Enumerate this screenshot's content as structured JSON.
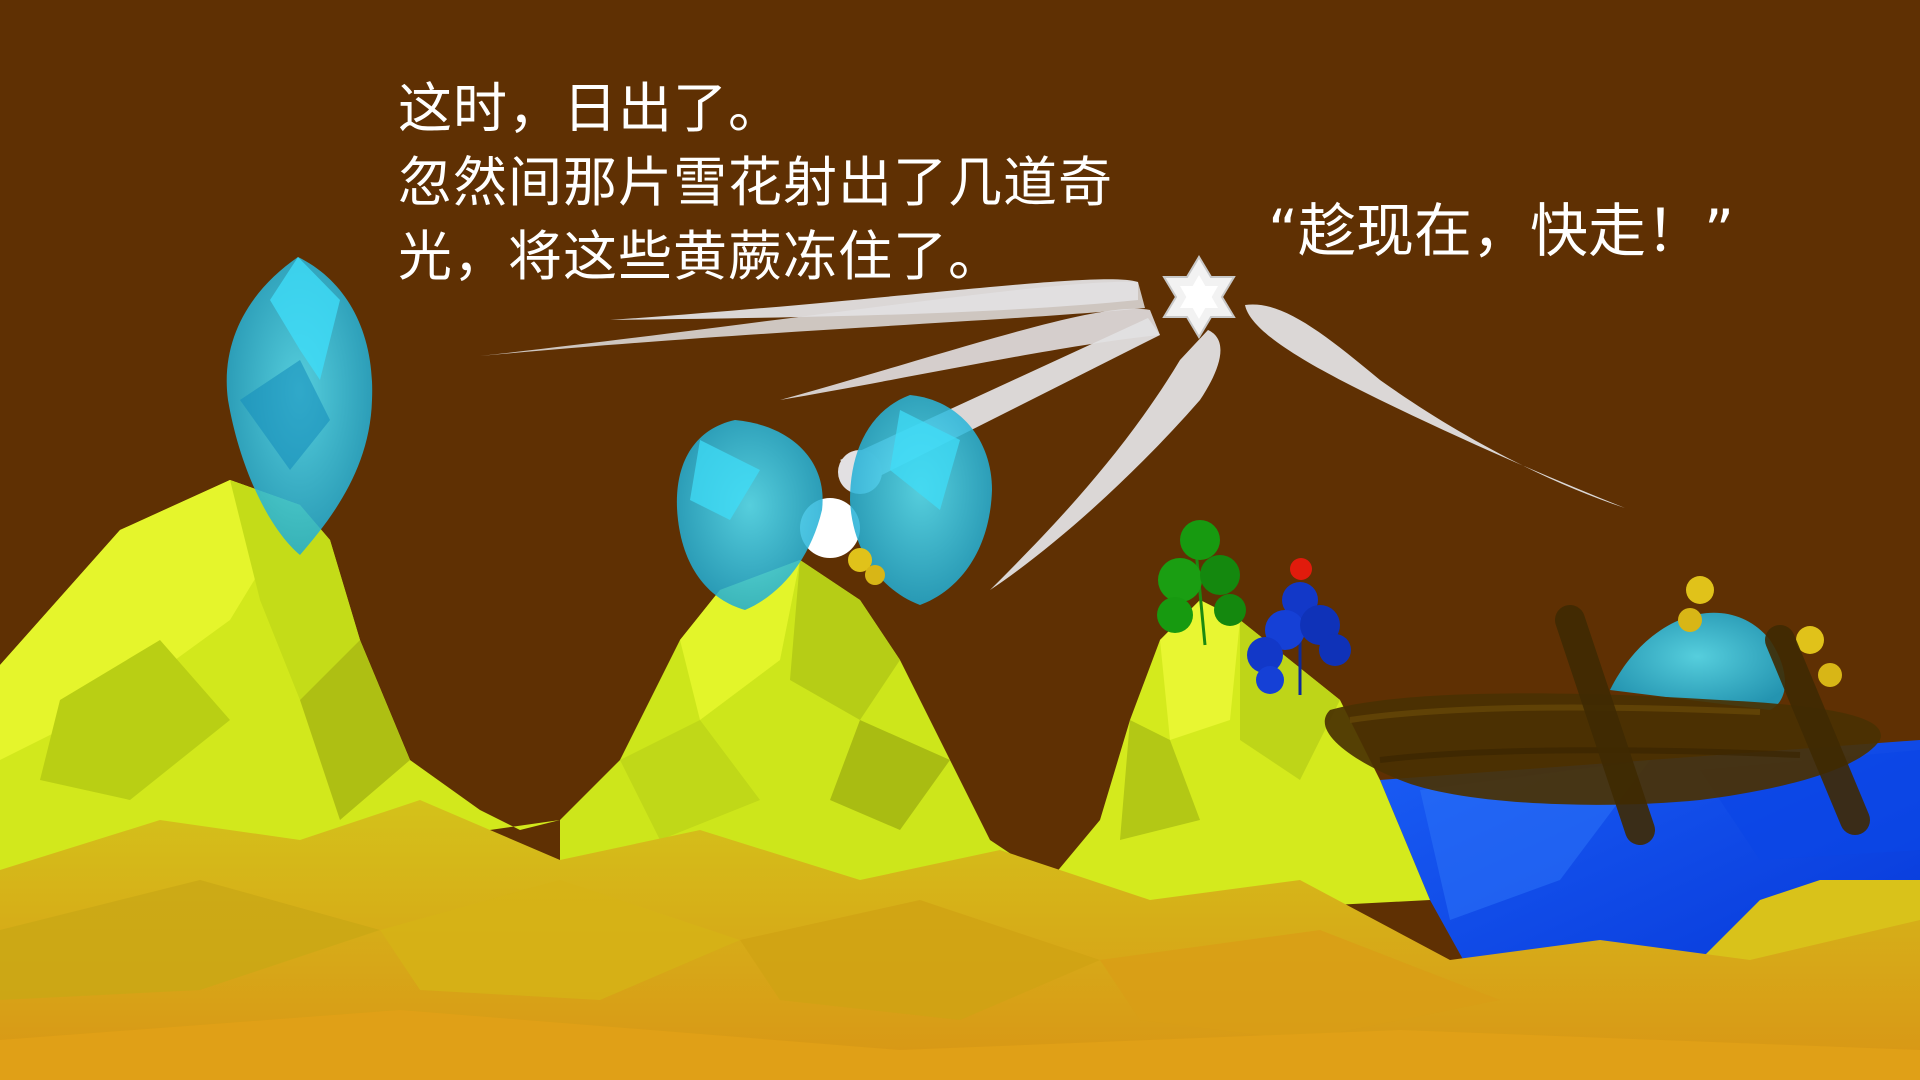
{
  "narration": {
    "lines": [
      "这时，日出了。",
      "忽然间那片雪花射出了几道奇",
      "光，将这些黄蕨冻住了。"
    ]
  },
  "dialogue": {
    "text": "“趁现在，快走！”"
  },
  "colors": {
    "sky": "#5f3003",
    "mountain_light": "#d8ee1e",
    "mountain_dark": "#c9b10f",
    "sand": "#d99f16",
    "ice": "#22c6e6",
    "water": "#0a57f2",
    "beam": "#e2e0e2",
    "fern_green": "#179a10",
    "fern_blue": "#1238c8",
    "fern_yellow": "#e0c21a",
    "berry": "#e11b0c",
    "boat": "#4a3102"
  },
  "icons": [
    "snowflake-star-icon",
    "sun-icon",
    "red-berry-icon"
  ]
}
